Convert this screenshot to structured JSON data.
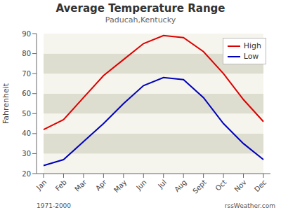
{
  "chart_data": {
    "type": "line",
    "title": "Average Temperature Range",
    "subtitle": "Paducah,Kentucky",
    "ylabel": "Fahrenheit",
    "categories": [
      "Jan",
      "Feb",
      "Mar",
      "Apr",
      "May",
      "Jun",
      "Jul",
      "Aug",
      "Sept",
      "Oct",
      "Nov",
      "Dec"
    ],
    "series": [
      {
        "name": "High",
        "color": "#dd0000",
        "values": [
          42,
          47,
          58,
          69,
          77,
          85,
          89,
          88,
          81,
          70,
          57,
          46
        ]
      },
      {
        "name": "Low",
        "color": "#0000bb",
        "values": [
          24,
          27,
          36,
          45,
          55,
          64,
          68,
          67,
          58,
          45,
          35,
          27
        ]
      }
    ],
    "ylim": [
      20,
      90
    ],
    "yticks": [
      20,
      30,
      40,
      50,
      60,
      70,
      80,
      90
    ],
    "grid": false,
    "legend": "upper right",
    "annotations": [
      "1971-2000",
      "rssWeather.com"
    ]
  }
}
